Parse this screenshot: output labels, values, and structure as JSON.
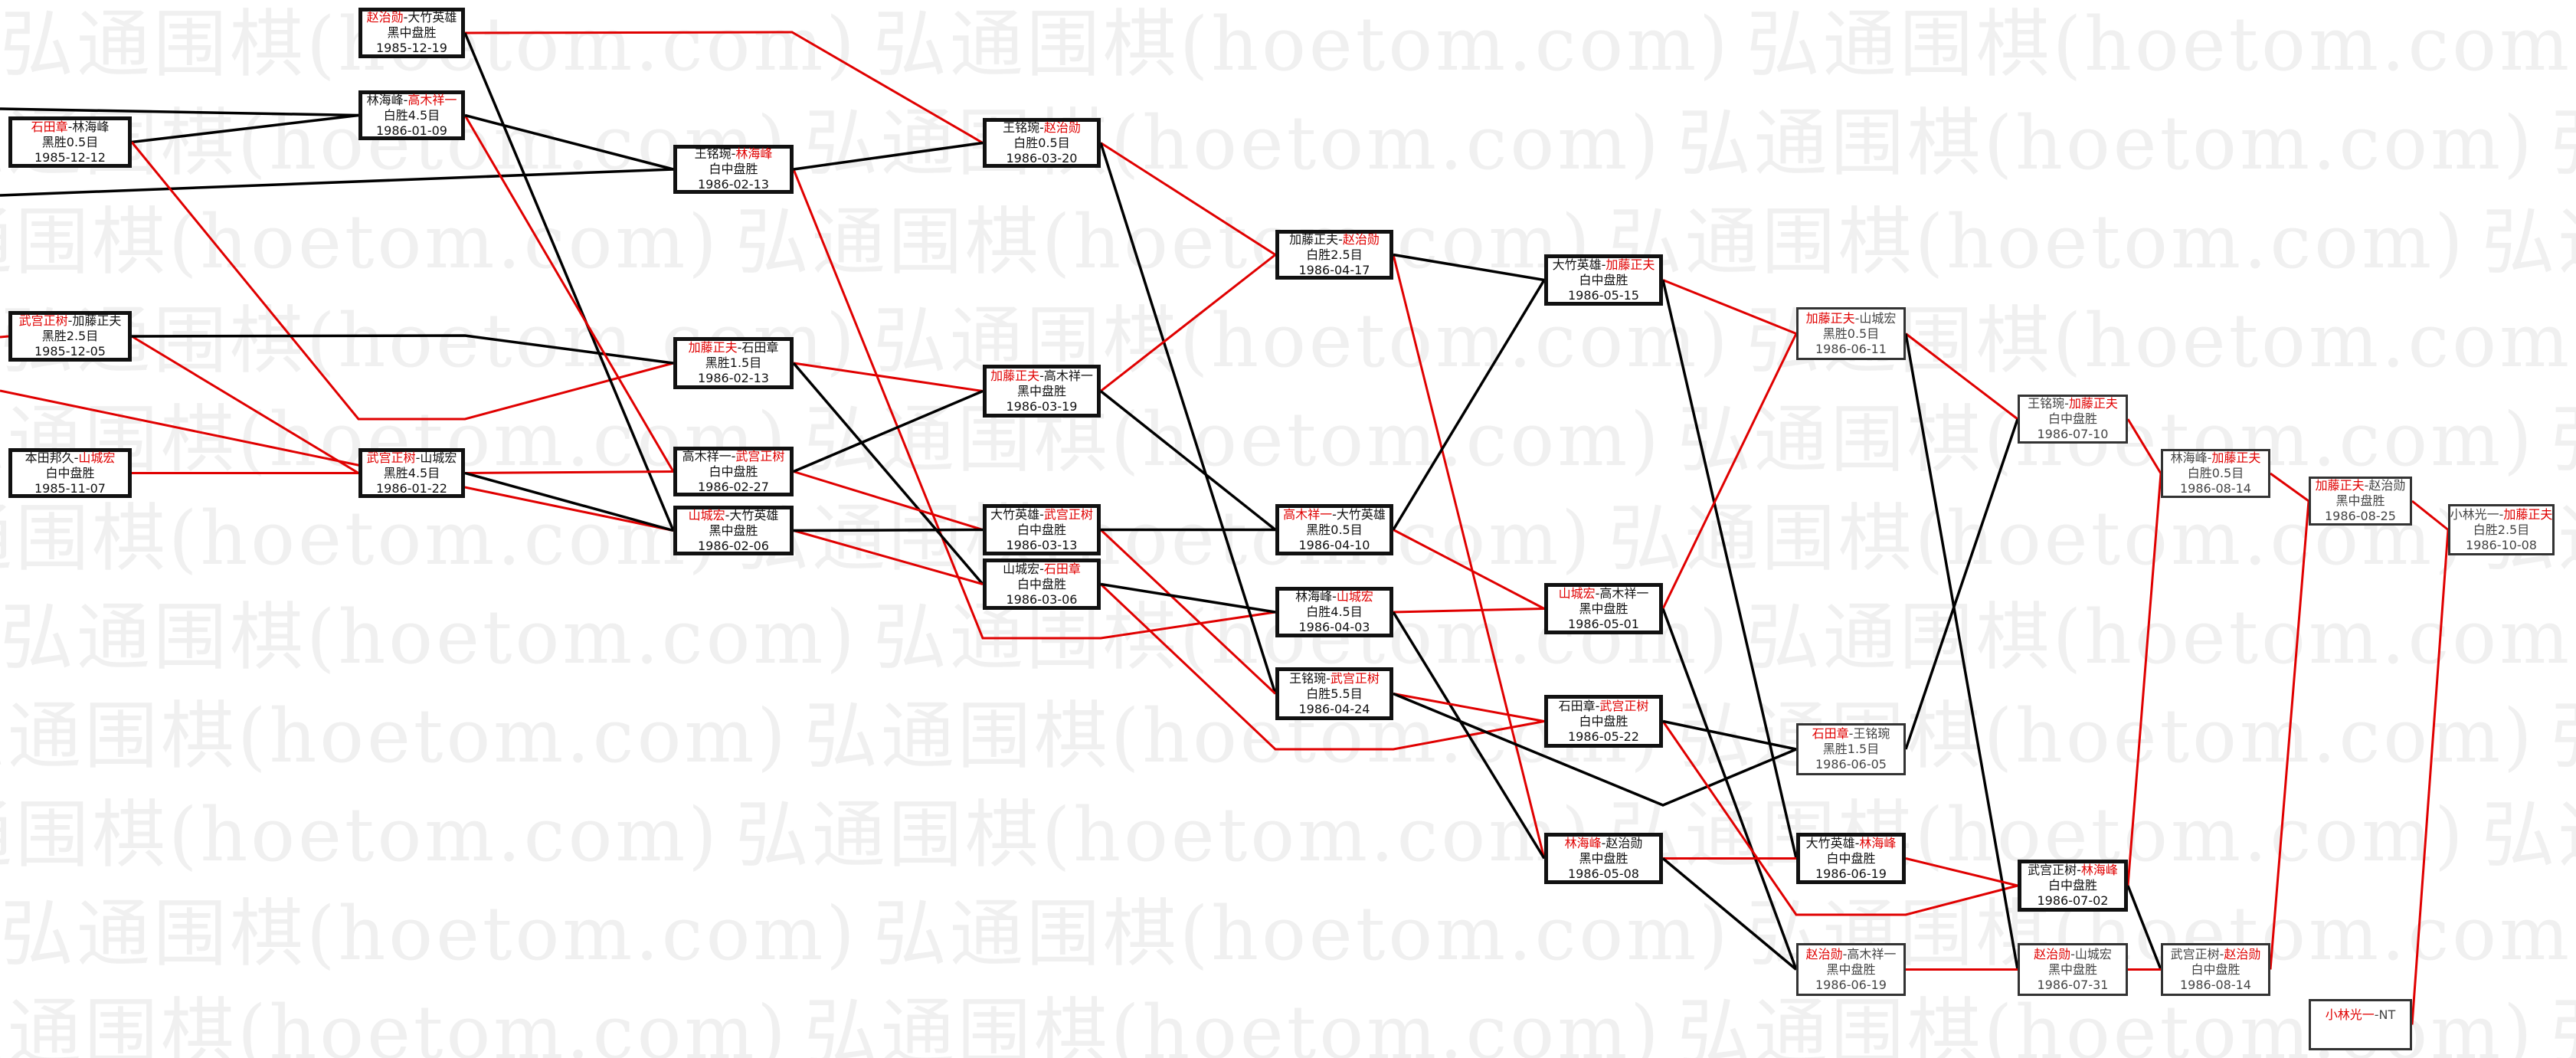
{
  "watermark": "弘通围棋(hoetom.com)",
  "colors": {
    "winner_line": "#e00000",
    "loser_line": "#000000",
    "highlight_name": "#e00000"
  },
  "games": [
    {
      "id": "A1",
      "players": [
        {
          "name": "石田章",
          "highlight": true
        },
        {
          "name": "林海峰",
          "highlight": false
        }
      ],
      "result": "黑胜0.5目",
      "date": "1985-12-12"
    },
    {
      "id": "A2",
      "players": [
        {
          "name": "武宫正树",
          "highlight": true
        },
        {
          "name": "加藤正夫",
          "highlight": false
        }
      ],
      "result": "黑胜2.5目",
      "date": "1985-12-05"
    },
    {
      "id": "A3",
      "players": [
        {
          "name": "本田邦久",
          "highlight": false
        },
        {
          "name": "山城宏",
          "highlight": true
        }
      ],
      "result": "白中盘胜",
      "date": "1985-11-07"
    },
    {
      "id": "B1",
      "players": [
        {
          "name": "赵治勋",
          "highlight": true
        },
        {
          "name": "大竹英雄",
          "highlight": false
        }
      ],
      "result": "黑中盘胜",
      "date": "1985-12-19"
    },
    {
      "id": "B2",
      "players": [
        {
          "name": "林海峰",
          "highlight": false
        },
        {
          "name": "高木祥一",
          "highlight": true
        }
      ],
      "result": "白胜4.5目",
      "date": "1986-01-09"
    },
    {
      "id": "B3",
      "players": [
        {
          "name": "武宫正树",
          "highlight": true
        },
        {
          "name": "山城宏",
          "highlight": false
        }
      ],
      "result": "黑胜4.5目",
      "date": "1986-01-22"
    },
    {
      "id": "C1",
      "players": [
        {
          "name": "王铭琬",
          "highlight": false
        },
        {
          "name": "林海峰",
          "highlight": true
        }
      ],
      "result": "白中盘胜",
      "date": "1986-02-13"
    },
    {
      "id": "C2",
      "players": [
        {
          "name": "加藤正夫",
          "highlight": true
        },
        {
          "name": "石田章",
          "highlight": false
        }
      ],
      "result": "黑胜1.5目",
      "date": "1986-02-13"
    },
    {
      "id": "C3",
      "players": [
        {
          "name": "高木祥一",
          "highlight": false
        },
        {
          "name": "武宫正树",
          "highlight": true
        }
      ],
      "result": "白中盘胜",
      "date": "1986-02-27"
    },
    {
      "id": "C4",
      "players": [
        {
          "name": "山城宏",
          "highlight": true
        },
        {
          "name": "大竹英雄",
          "highlight": false
        }
      ],
      "result": "黑中盘胜",
      "date": "1986-02-06"
    },
    {
      "id": "D1",
      "players": [
        {
          "name": "王铭琬",
          "highlight": false
        },
        {
          "name": "赵治勋",
          "highlight": true
        }
      ],
      "result": "白胜0.5目",
      "date": "1986-03-20"
    },
    {
      "id": "D2",
      "players": [
        {
          "name": "加藤正夫",
          "highlight": true
        },
        {
          "name": "高木祥一",
          "highlight": false
        }
      ],
      "result": "黑中盘胜",
      "date": "1986-03-19"
    },
    {
      "id": "D3",
      "players": [
        {
          "name": "大竹英雄",
          "highlight": false
        },
        {
          "name": "武宫正树",
          "highlight": true
        }
      ],
      "result": "白中盘胜",
      "date": "1986-03-13"
    },
    {
      "id": "D4",
      "players": [
        {
          "name": "山城宏",
          "highlight": false
        },
        {
          "name": "石田章",
          "highlight": true
        }
      ],
      "result": "白中盘胜",
      "date": "1986-03-06"
    },
    {
      "id": "E1",
      "players": [
        {
          "name": "加藤正夫",
          "highlight": false
        },
        {
          "name": "赵治勋",
          "highlight": true
        }
      ],
      "result": "白胜2.5目",
      "date": "1986-04-17"
    },
    {
      "id": "E2",
      "players": [
        {
          "name": "高木祥一",
          "highlight": true
        },
        {
          "name": "大竹英雄",
          "highlight": false
        }
      ],
      "result": "黑胜0.5目",
      "date": "1986-04-10"
    },
    {
      "id": "E3",
      "players": [
        {
          "name": "林海峰",
          "highlight": false
        },
        {
          "name": "山城宏",
          "highlight": true
        }
      ],
      "result": "白胜4.5目",
      "date": "1986-04-03"
    },
    {
      "id": "E4",
      "players": [
        {
          "name": "王铭琬",
          "highlight": false
        },
        {
          "name": "武宫正树",
          "highlight": true
        }
      ],
      "result": "白胜5.5目",
      "date": "1986-04-24"
    },
    {
      "id": "F1",
      "players": [
        {
          "name": "大竹英雄",
          "highlight": false
        },
        {
          "name": "加藤正夫",
          "highlight": true
        }
      ],
      "result": "白中盘胜",
      "date": "1986-05-15"
    },
    {
      "id": "F2",
      "players": [
        {
          "name": "山城宏",
          "highlight": true
        },
        {
          "name": "高木祥一",
          "highlight": false
        }
      ],
      "result": "黑中盘胜",
      "date": "1986-05-01"
    },
    {
      "id": "F3",
      "players": [
        {
          "name": "石田章",
          "highlight": false
        },
        {
          "name": "武宫正树",
          "highlight": true
        }
      ],
      "result": "白中盘胜",
      "date": "1986-05-22"
    },
    {
      "id": "F4",
      "players": [
        {
          "name": "林海峰",
          "highlight": true
        },
        {
          "name": "赵治勋",
          "highlight": false
        }
      ],
      "result": "黑中盘胜",
      "date": "1986-05-08"
    },
    {
      "id": "G1",
      "players": [
        {
          "name": "加藤正夫",
          "highlight": true
        },
        {
          "name": "山城宏",
          "highlight": false
        }
      ],
      "result": "黑胜0.5目",
      "date": "1986-06-11"
    },
    {
      "id": "G2",
      "players": [
        {
          "name": "石田章",
          "highlight": true
        },
        {
          "name": "王铭琬",
          "highlight": false
        }
      ],
      "result": "黑胜1.5目",
      "date": "1986-06-05"
    },
    {
      "id": "G3",
      "players": [
        {
          "name": "大竹英雄",
          "highlight": false
        },
        {
          "name": "林海峰",
          "highlight": true
        }
      ],
      "result": "白中盘胜",
      "date": "1986-06-19"
    },
    {
      "id": "G4",
      "players": [
        {
          "name": "赵治勋",
          "highlight": true
        },
        {
          "name": "高木祥一",
          "highlight": false
        }
      ],
      "result": "黑中盘胜",
      "date": "1986-06-19"
    },
    {
      "id": "H1",
      "players": [
        {
          "name": "王铭琬",
          "highlight": false
        },
        {
          "name": "加藤正夫",
          "highlight": true
        }
      ],
      "result": "白中盘胜",
      "date": "1986-07-10"
    },
    {
      "id": "H2",
      "players": [
        {
          "name": "武宫正树",
          "highlight": false
        },
        {
          "name": "林海峰",
          "highlight": true
        }
      ],
      "result": "白中盘胜",
      "date": "1986-07-02"
    },
    {
      "id": "H3",
      "players": [
        {
          "name": "赵治勋",
          "highlight": true
        },
        {
          "name": "山城宏",
          "highlight": false
        }
      ],
      "result": "黑中盘胜",
      "date": "1986-07-31"
    },
    {
      "id": "I1",
      "players": [
        {
          "name": "林海峰",
          "highlight": false
        },
        {
          "name": "加藤正夫",
          "highlight": true
        }
      ],
      "result": "白胜0.5目",
      "date": "1986-08-14"
    },
    {
      "id": "I2",
      "players": [
        {
          "name": "武宫正树",
          "highlight": false
        },
        {
          "name": "赵治勋",
          "highlight": true
        }
      ],
      "result": "白中盘胜",
      "date": "1986-08-14"
    },
    {
      "id": "J1",
      "players": [
        {
          "name": "加藤正夫",
          "highlight": true
        },
        {
          "name": "赵治勋",
          "highlight": false
        }
      ],
      "result": "黑中盘胜",
      "date": "1986-08-25"
    },
    {
      "id": "J2",
      "players": [
        {
          "name": "小林光一",
          "highlight": true
        },
        {
          "name": "NT",
          "highlight": false
        }
      ]
    },
    {
      "id": "K1",
      "players": [
        {
          "name": "小林光一",
          "highlight": false
        },
        {
          "name": "加藤正夫",
          "highlight": true
        }
      ],
      "result": "白胜2.5目",
      "date": "1986-10-08"
    }
  ],
  "edges": [
    {
      "from": "offscreen-1",
      "to": "B2",
      "line": "loser"
    },
    {
      "from": "offscreen-2",
      "to": "C1",
      "line": "loser"
    },
    {
      "from": "offscreen-3",
      "to": "A2",
      "line": "winner"
    },
    {
      "from": "offscreen-4",
      "to": "C4",
      "line": "winner"
    },
    {
      "from": "A1",
      "to": "B2",
      "line": "loser"
    },
    {
      "from": "A1",
      "to": "C2",
      "line": "winner"
    },
    {
      "from": "A2",
      "to": "B3",
      "line": "winner"
    },
    {
      "from": "A2",
      "to": "C2",
      "line": "loser"
    },
    {
      "from": "A3",
      "to": "B3",
      "line": "winner"
    },
    {
      "from": "B1",
      "to": "D1",
      "line": "winner"
    },
    {
      "from": "B1",
      "to": "C4",
      "line": "loser"
    },
    {
      "from": "B2",
      "to": "C3",
      "line": "winner"
    },
    {
      "from": "B2",
      "to": "C1",
      "line": "loser"
    },
    {
      "from": "B3",
      "to": "C3",
      "line": "winner"
    },
    {
      "from": "B3",
      "to": "C4",
      "line": "loser"
    },
    {
      "from": "C1",
      "to": "E3",
      "line": "winner"
    },
    {
      "from": "C1",
      "to": "D1",
      "line": "loser"
    },
    {
      "from": "C2",
      "to": "D2",
      "line": "winner"
    },
    {
      "from": "C2",
      "to": "D4",
      "line": "loser"
    },
    {
      "from": "C3",
      "to": "D3",
      "line": "winner"
    },
    {
      "from": "C3",
      "to": "D2",
      "line": "loser"
    },
    {
      "from": "C4",
      "to": "D4",
      "line": "winner"
    },
    {
      "from": "C4",
      "to": "D3",
      "line": "loser"
    },
    {
      "from": "D1",
      "to": "E1",
      "line": "winner"
    },
    {
      "from": "D1",
      "to": "E4",
      "line": "loser"
    },
    {
      "from": "D2",
      "to": "E1",
      "line": "winner"
    },
    {
      "from": "D2",
      "to": "E2",
      "line": "loser"
    },
    {
      "from": "D3",
      "to": "E4",
      "line": "winner"
    },
    {
      "from": "D3",
      "to": "E2",
      "line": "loser"
    },
    {
      "from": "D4",
      "to": "F3",
      "line": "winner"
    },
    {
      "from": "D4",
      "to": "E3",
      "line": "loser"
    },
    {
      "from": "E1",
      "to": "F4",
      "line": "winner"
    },
    {
      "from": "E1",
      "to": "F1",
      "line": "loser"
    },
    {
      "from": "E2",
      "to": "F2",
      "line": "winner"
    },
    {
      "from": "E2",
      "to": "F1",
      "line": "loser"
    },
    {
      "from": "E3",
      "to": "F2",
      "line": "winner"
    },
    {
      "from": "E3",
      "to": "F4",
      "line": "loser"
    },
    {
      "from": "E4",
      "to": "F3",
      "line": "winner"
    },
    {
      "from": "E4",
      "to": "G2",
      "line": "loser"
    },
    {
      "from": "F1",
      "to": "G1",
      "line": "winner"
    },
    {
      "from": "F1",
      "to": "G3",
      "line": "loser"
    },
    {
      "from": "F2",
      "to": "G1",
      "line": "winner"
    },
    {
      "from": "F2",
      "to": "G4",
      "line": "loser"
    },
    {
      "from": "F3",
      "to": "H2",
      "line": "winner"
    },
    {
      "from": "F3",
      "to": "G2",
      "line": "loser"
    },
    {
      "from": "F4",
      "to": "G3",
      "line": "winner"
    },
    {
      "from": "F4",
      "to": "G4",
      "line": "loser"
    },
    {
      "from": "G1",
      "to": "H1",
      "line": "winner"
    },
    {
      "from": "G1",
      "to": "H3",
      "line": "loser"
    },
    {
      "from": "G2",
      "to": "H1",
      "line": "loser"
    },
    {
      "from": "G3",
      "to": "H2",
      "line": "winner"
    },
    {
      "from": "G4",
      "to": "H3",
      "line": "winner"
    },
    {
      "from": "H1",
      "to": "I1",
      "line": "winner"
    },
    {
      "from": "H2",
      "to": "I1",
      "line": "winner"
    },
    {
      "from": "H2",
      "to": "I2",
      "line": "loser"
    },
    {
      "from": "H3",
      "to": "I2",
      "line": "winner"
    },
    {
      "from": "I1",
      "to": "J1",
      "line": "winner"
    },
    {
      "from": "I2",
      "to": "J1",
      "line": "winner"
    },
    {
      "from": "J1",
      "to": "K1",
      "line": "winner"
    },
    {
      "from": "J2",
      "to": "K1",
      "line": "winner"
    }
  ]
}
